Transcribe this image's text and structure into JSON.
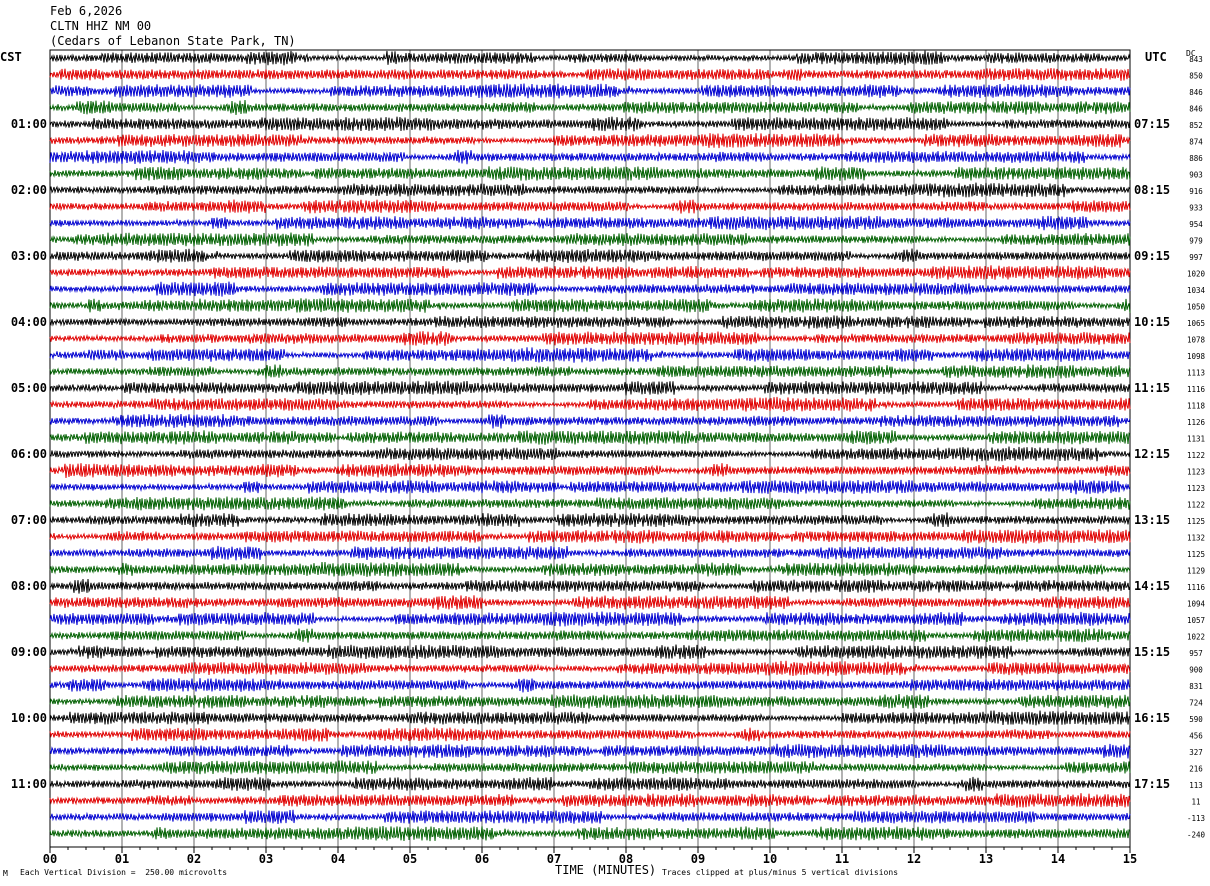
{
  "header": {
    "date": "Feb 6,2026",
    "station": "CLTN HHZ NM 00",
    "location": "(Cedars of Lebanon State Park, TN)"
  },
  "left_zone_label": "CST",
  "right_zone_label": "UTC",
  "dc_label": "DC",
  "footer": {
    "left_note": "Each Vertical Division =  250.00 microvolts",
    "xlabel": "TIME (MINUTES)",
    "right_note": "Traces clipped at plus/minus 5 vertical divisions",
    "corner_mark": "M"
  },
  "colors": {
    "trace_cycle": [
      "#000000",
      "#e00000",
      "#0000d0",
      "#006000"
    ],
    "grid": "#000000",
    "background": "#ffffff"
  },
  "chart_data": {
    "type": "line",
    "title": "CLTN HHZ NM 00",
    "xlabel": "TIME (MINUTES)",
    "xlim": [
      0,
      15
    ],
    "x_ticks": [
      "00",
      "01",
      "02",
      "03",
      "04",
      "05",
      "06",
      "07",
      "08",
      "09",
      "10",
      "11",
      "12",
      "13",
      "14",
      "15"
    ],
    "rows": 48,
    "rows_per_hour": 4,
    "left_hour_labels": [
      "01:00",
      "02:00",
      "03:00",
      "04:00",
      "05:00",
      "06:00",
      "07:00",
      "08:00",
      "09:00",
      "10:00",
      "11:00"
    ],
    "right_hour_labels": [
      "07:15",
      "08:15",
      "09:15",
      "10:15",
      "11:15",
      "12:15",
      "13:15",
      "14:15",
      "15:15",
      "16:15",
      "17:15"
    ],
    "hour_label_rows": [
      4,
      8,
      12,
      16,
      20,
      24,
      28,
      32,
      36,
      40,
      44
    ],
    "dc_offsets": [
      "843",
      "850",
      "846",
      "846",
      "852",
      "874",
      "886",
      "903",
      "916",
      "933",
      "954",
      "979",
      "997",
      "1020",
      "1034",
      "1050",
      "1065",
      "1078",
      "1098",
      "1113",
      "1116",
      "1118",
      "1126",
      "1131",
      "1122",
      "1123",
      "1123",
      "1122",
      "1125",
      "1132",
      "1125",
      "1129",
      "1116",
      "1094",
      "1057",
      "1022",
      "957",
      "900",
      "831",
      "724",
      "590",
      "456",
      "327",
      "216",
      "113",
      "11",
      "-113",
      "-240"
    ],
    "grid": true,
    "clip_divisions": 5,
    "division_microvolts": 250
  }
}
